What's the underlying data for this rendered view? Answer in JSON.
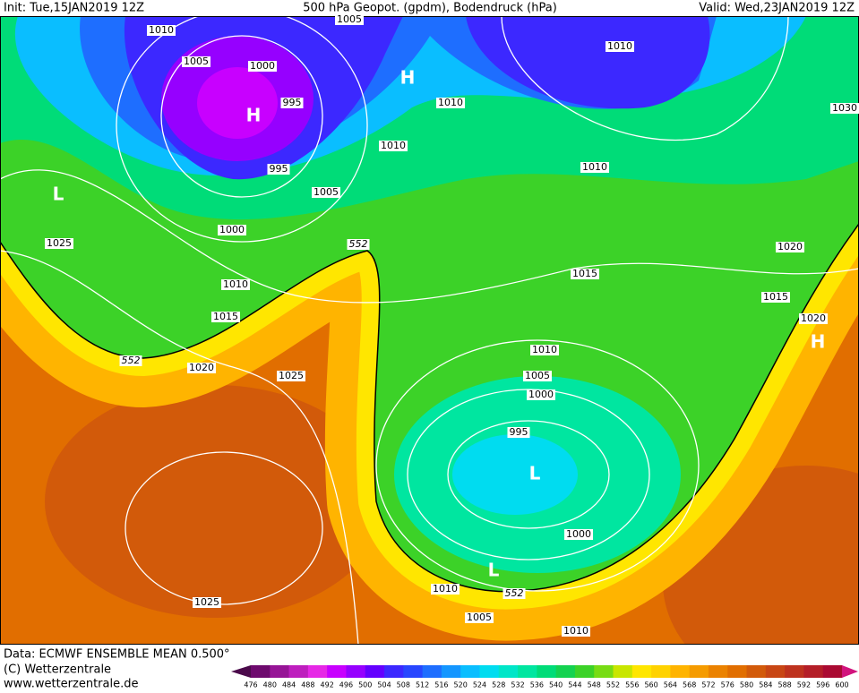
{
  "header": {
    "left": "Init: Tue,15JAN2019 12Z",
    "center": "500 hPa Geopot. (gpdm), Bodendruck (hPa)",
    "right": "Valid: Wed,23JAN2019 12Z"
  },
  "footer": {
    "data": "Data: ECMWF ENSEMBLE MEAN 0.500°",
    "copyright": "(C) Wetterzentrale",
    "url": "www.wetterzentrale.de"
  },
  "colorbar": {
    "labels": [
      476,
      480,
      484,
      488,
      492,
      496,
      500,
      504,
      508,
      512,
      516,
      520,
      524,
      528,
      532,
      536,
      540,
      544,
      548,
      552,
      556,
      560,
      564,
      568,
      572,
      576,
      580,
      584,
      588,
      592,
      596,
      600
    ],
    "colors": [
      "#6e0a6e",
      "#961496",
      "#be1ebe",
      "#e628e6",
      "#c800ff",
      "#9600ff",
      "#6400ff",
      "#3c28ff",
      "#2846ff",
      "#1e6eff",
      "#1496ff",
      "#0abeff",
      "#00dcf0",
      "#00e6c8",
      "#00e6a0",
      "#00dc78",
      "#14d250",
      "#3cd228",
      "#78dc14",
      "#c8e600",
      "#ffe600",
      "#ffd200",
      "#ffb400",
      "#f59b00",
      "#eb8200",
      "#e16e00",
      "#d25a0a",
      "#c84614",
      "#be321e",
      "#b41e28",
      "#aa0a32"
    ]
  },
  "map_labels": [
    "1010",
    "1005",
    "1000",
    "995",
    "995",
    "1005",
    "1000",
    "1010",
    "1015",
    "1020",
    "1025",
    "1025",
    "1025",
    "1010",
    "1010",
    "1010",
    "1010",
    "1030",
    "1020",
    "1015",
    "1020",
    "1015",
    "1010",
    "1005",
    "1000",
    "995",
    "1000",
    "1010",
    "1005",
    "1010",
    "552",
    "552",
    "552",
    "1005"
  ],
  "centers": [
    "H",
    "L",
    "L",
    "L",
    "H",
    "H"
  ]
}
